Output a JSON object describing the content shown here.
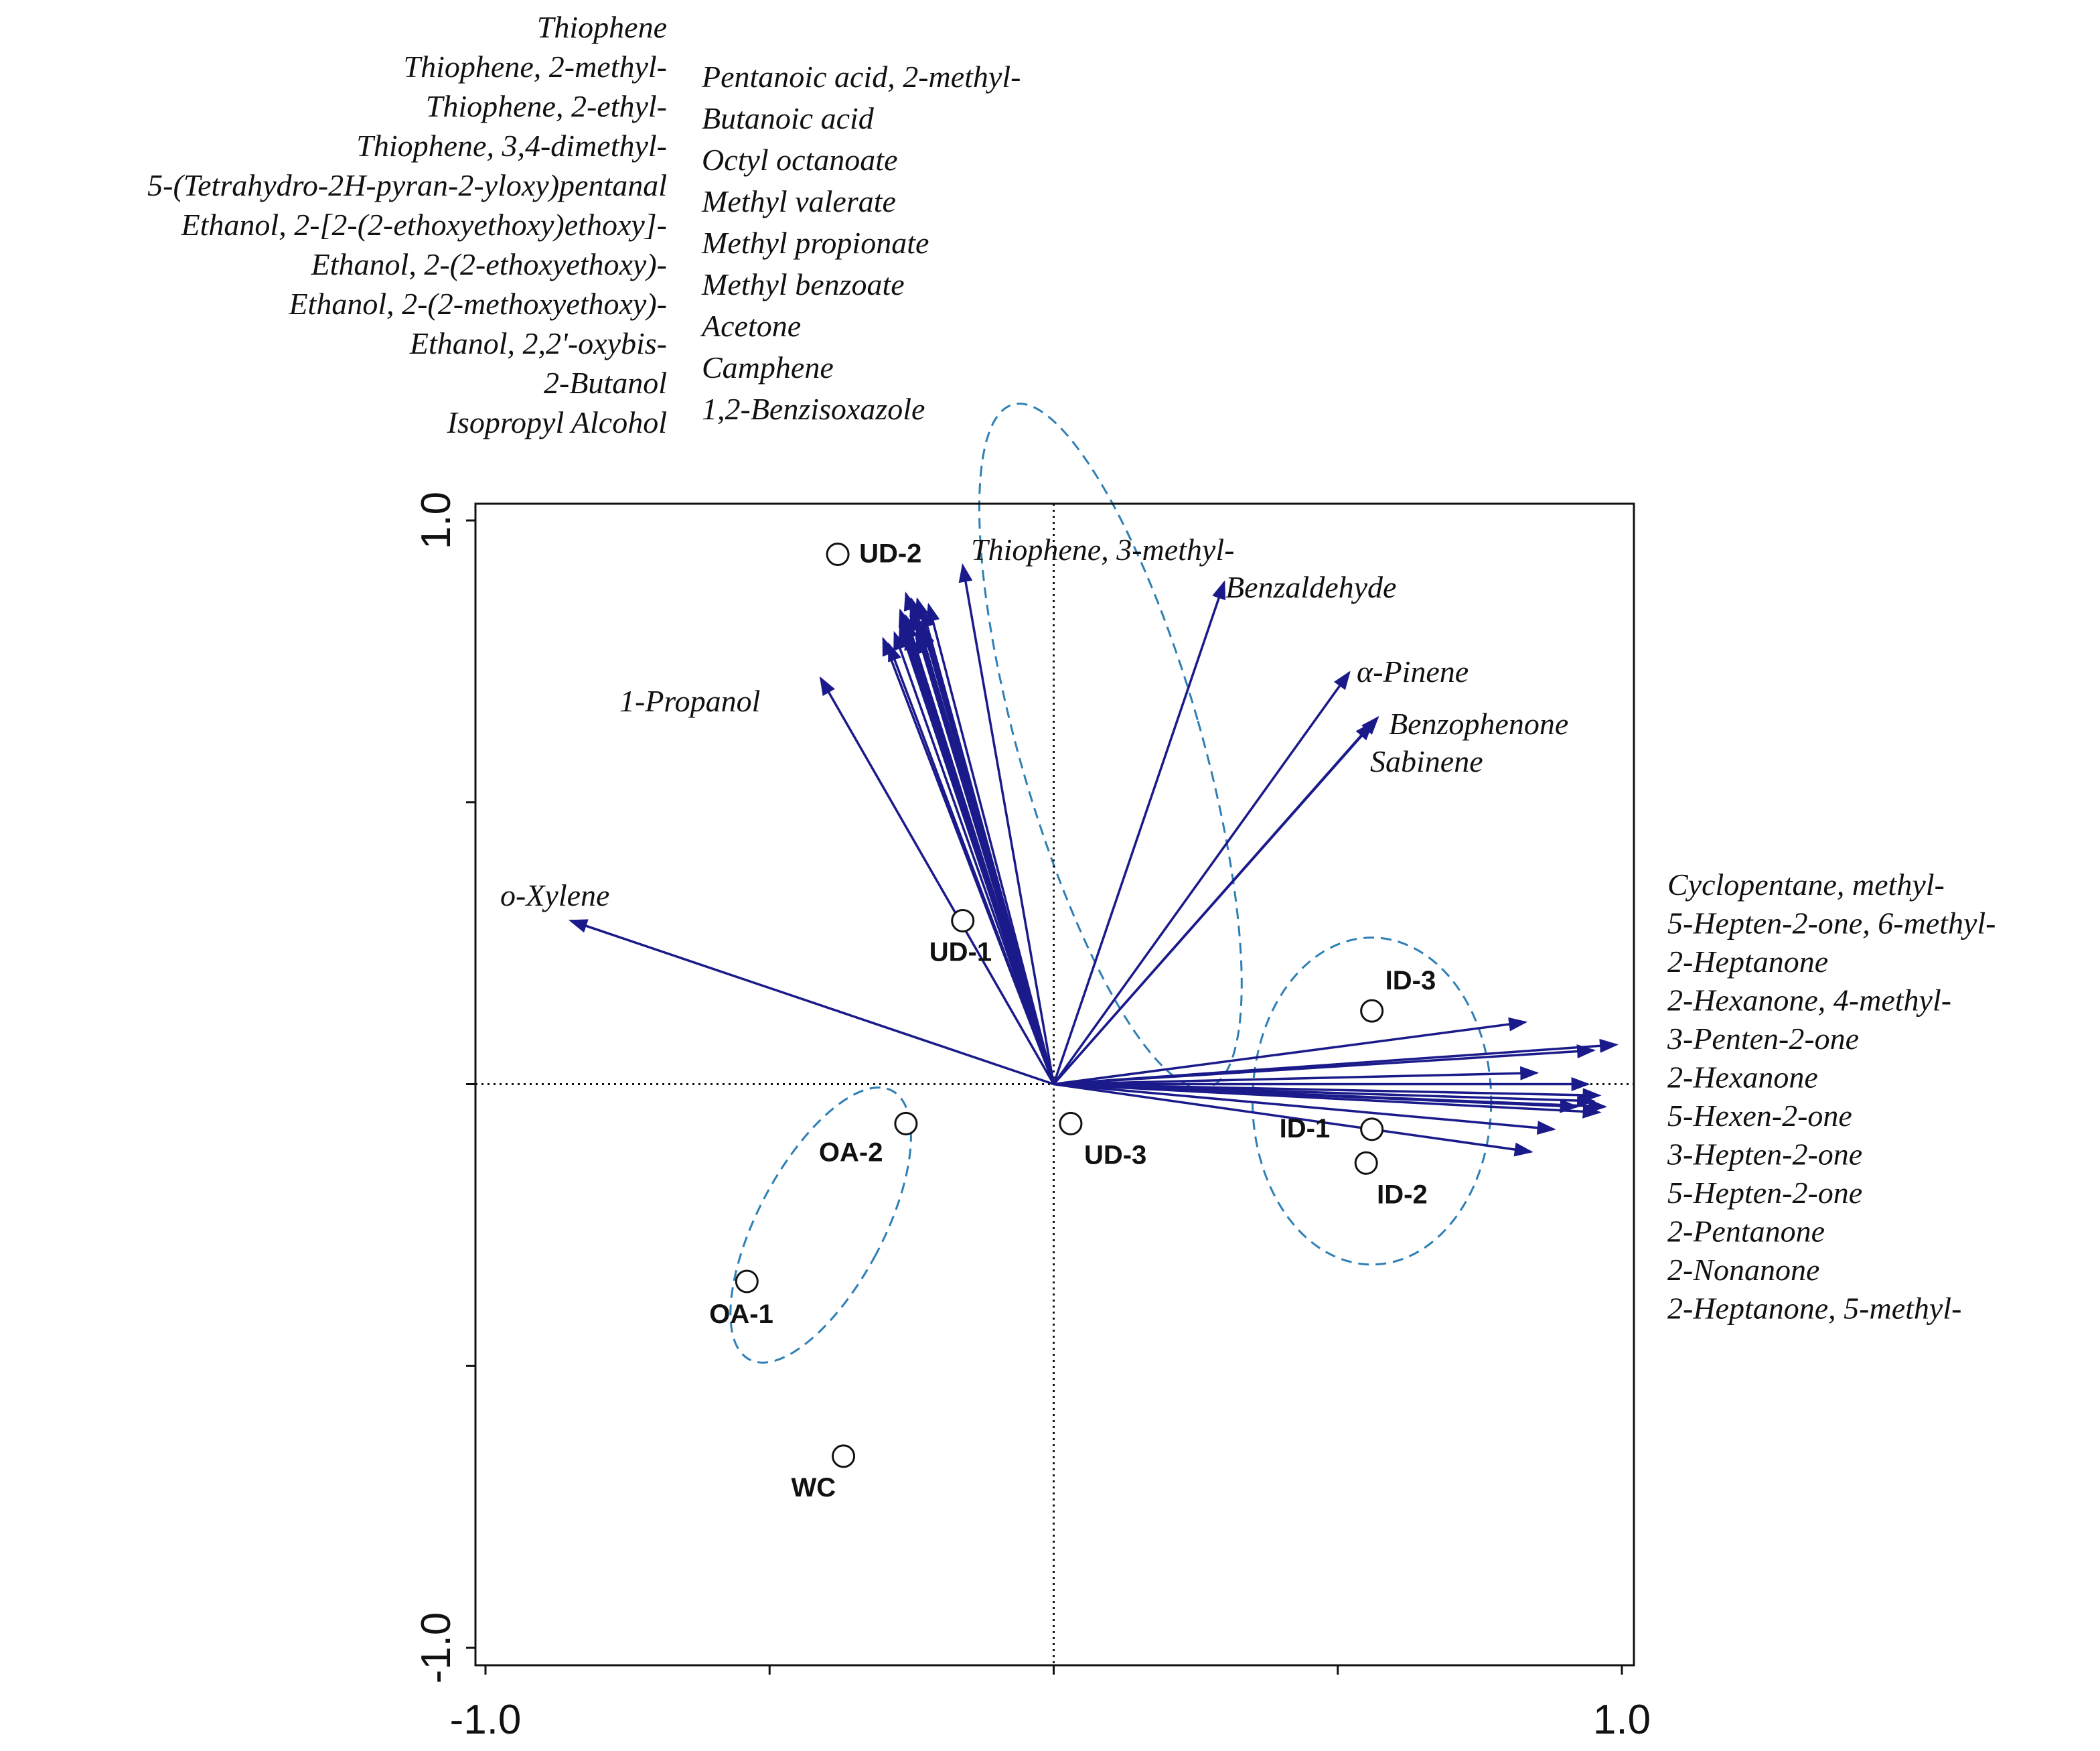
{
  "chart_data": {
    "type": "scatter",
    "subtype": "PCA biplot",
    "title": "",
    "xlabel": "",
    "ylabel": "",
    "xlim": [
      -1.0,
      1.0
    ],
    "ylim": [
      -1.0,
      1.0
    ],
    "x_ticks": [
      "-1.0",
      "1.0"
    ],
    "y_ticks": [
      "1.0",
      "-1.0"
    ],
    "reference_lines": [
      "x=0",
      "y=0"
    ],
    "samples": [
      {
        "name": "UD-2",
        "x": -0.38,
        "y": 0.94
      },
      {
        "name": "UD-1",
        "x": -0.16,
        "y": 0.29
      },
      {
        "name": "UD-3",
        "x": 0.03,
        "y": -0.07
      },
      {
        "name": "OA-2",
        "x": -0.26,
        "y": -0.07
      },
      {
        "name": "OA-1",
        "x": -0.54,
        "y": -0.35
      },
      {
        "name": "WC",
        "x": -0.37,
        "y": -0.66
      },
      {
        "name": "ID-3",
        "x": 0.56,
        "y": 0.13
      },
      {
        "name": "ID-1",
        "x": 0.56,
        "y": -0.08
      },
      {
        "name": "ID-2",
        "x": 0.55,
        "y": -0.14
      }
    ],
    "vectors": [
      {
        "name": "o-Xylene",
        "x": -0.85,
        "y": 0.29
      },
      {
        "name": "1-Propanol",
        "x": -0.41,
        "y": 0.72
      },
      {
        "name": "Thiophene, 3-methyl-",
        "x": -0.16,
        "y": 0.92
      },
      {
        "name": "Benzaldehyde",
        "x": 0.3,
        "y": 0.89
      },
      {
        "name": "α-Pinene",
        "x": 0.52,
        "y": 0.73
      },
      {
        "name": "Benzophenone",
        "x": 0.57,
        "y": 0.65
      },
      {
        "name": "Sabinene",
        "x": 0.56,
        "y": 0.64
      },
      {
        "name": "Thiophene",
        "x": -0.26,
        "y": 0.87
      },
      {
        "name": "Thiophene, 2-methyl-",
        "x": -0.24,
        "y": 0.86
      },
      {
        "name": "Thiophene, 2-ethyl-",
        "x": -0.25,
        "y": 0.84
      },
      {
        "name": "Thiophene, 3,4-dimethyl-",
        "x": -0.22,
        "y": 0.85
      },
      {
        "name": "5-(Tetrahydro-2H-pyran-2-yloxy)pentanal",
        "x": -0.26,
        "y": 0.82
      },
      {
        "name": "Ethanol, 2-[2-(2-ethoxyethoxy)ethoxy]-",
        "x": -0.24,
        "y": 0.8
      },
      {
        "name": "Ethanol, 2-(2-ethoxyethoxy)-",
        "x": -0.25,
        "y": 0.79
      },
      {
        "name": "Ethanol, 2-(2-methoxyethoxy)-",
        "x": -0.3,
        "y": 0.79
      },
      {
        "name": "Ethanol, 2,2'-oxybis-",
        "x": -0.29,
        "y": 0.78
      },
      {
        "name": "2-Butanol",
        "x": -0.26,
        "y": 0.83
      },
      {
        "name": "Isopropyl Alcohol",
        "x": -0.27,
        "y": 0.81
      },
      {
        "name": "Pentanoic acid, 2-methyl-",
        "x": -0.25,
        "y": 0.85
      },
      {
        "name": "Butanoic acid",
        "x": -0.23,
        "y": 0.81
      },
      {
        "name": "Octyl octanoate",
        "x": -0.27,
        "y": 0.84
      },
      {
        "name": "Methyl valerate",
        "x": -0.24,
        "y": 0.82
      },
      {
        "name": "Methyl propionate",
        "x": -0.26,
        "y": 0.8
      },
      {
        "name": "Methyl benzoate",
        "x": -0.28,
        "y": 0.8
      },
      {
        "name": "Acetone",
        "x": -0.25,
        "y": 0.86
      },
      {
        "name": "Camphene",
        "x": -0.23,
        "y": 0.84
      },
      {
        "name": "1,2-Benzisoxazole",
        "x": -0.27,
        "y": 0.82
      },
      {
        "name": "Cyclopentane, methyl-",
        "x": 0.83,
        "y": 0.11
      },
      {
        "name": "5-Hepten-2-one, 6-methyl-",
        "x": 0.99,
        "y": 0.07
      },
      {
        "name": "2-Heptanone",
        "x": 0.95,
        "y": 0.06
      },
      {
        "name": "2-Hexanone, 4-methyl-",
        "x": 0.85,
        "y": 0.02
      },
      {
        "name": "3-Penten-2-one",
        "x": 0.94,
        "y": 0.0
      },
      {
        "name": "2-Hexanone",
        "x": 0.96,
        "y": -0.02
      },
      {
        "name": "5-Hexen-2-one",
        "x": 0.97,
        "y": -0.04
      },
      {
        "name": "3-Hepten-2-one",
        "x": 0.95,
        "y": -0.03
      },
      {
        "name": "5-Hepten-2-one",
        "x": 0.92,
        "y": -0.04
      },
      {
        "name": "2-Pentanone",
        "x": 0.88,
        "y": -0.08
      },
      {
        "name": "2-Nonanone",
        "x": 0.84,
        "y": -0.12
      },
      {
        "name": "2-Heptanone, 5-methyl-",
        "x": 0.96,
        "y": -0.05
      }
    ],
    "vector_color": "#1a1a8a",
    "group_ellipse_color": "#2e7fb5",
    "label_groups": {
      "top_left": [
        "Thiophene",
        "Thiophene, 2-methyl-",
        "Thiophene, 2-ethyl-",
        "Thiophene, 3,4-dimethyl-",
        "5-(Tetrahydro-2H-pyran-2-yloxy)pentanal",
        "Ethanol, 2-[2-(2-ethoxyethoxy)ethoxy]-",
        "Ethanol, 2-(2-ethoxyethoxy)-",
        "Ethanol, 2-(2-methoxyethoxy)-",
        "Ethanol, 2,2'-oxybis-",
        "2-Butanol",
        "Isopropyl Alcohol"
      ],
      "top_middle": [
        "Pentanoic acid, 2-methyl-",
        "Butanoic acid",
        "Octyl octanoate",
        "Methyl valerate",
        "Methyl propionate",
        "Methyl benzoate",
        "Acetone",
        "Camphene",
        "1,2-Benzisoxazole"
      ],
      "right": [
        "Cyclopentane, methyl-",
        "5-Hepten-2-one, 6-methyl-",
        "2-Heptanone",
        "2-Hexanone, 4-methyl-",
        "3-Penten-2-one",
        "2-Hexanone",
        "5-Hexen-2-one",
        "3-Hepten-2-one",
        "5-Hepten-2-one",
        "2-Pentanone",
        "2-Nonanone",
        "2-Heptanone, 5-methyl-"
      ]
    }
  }
}
